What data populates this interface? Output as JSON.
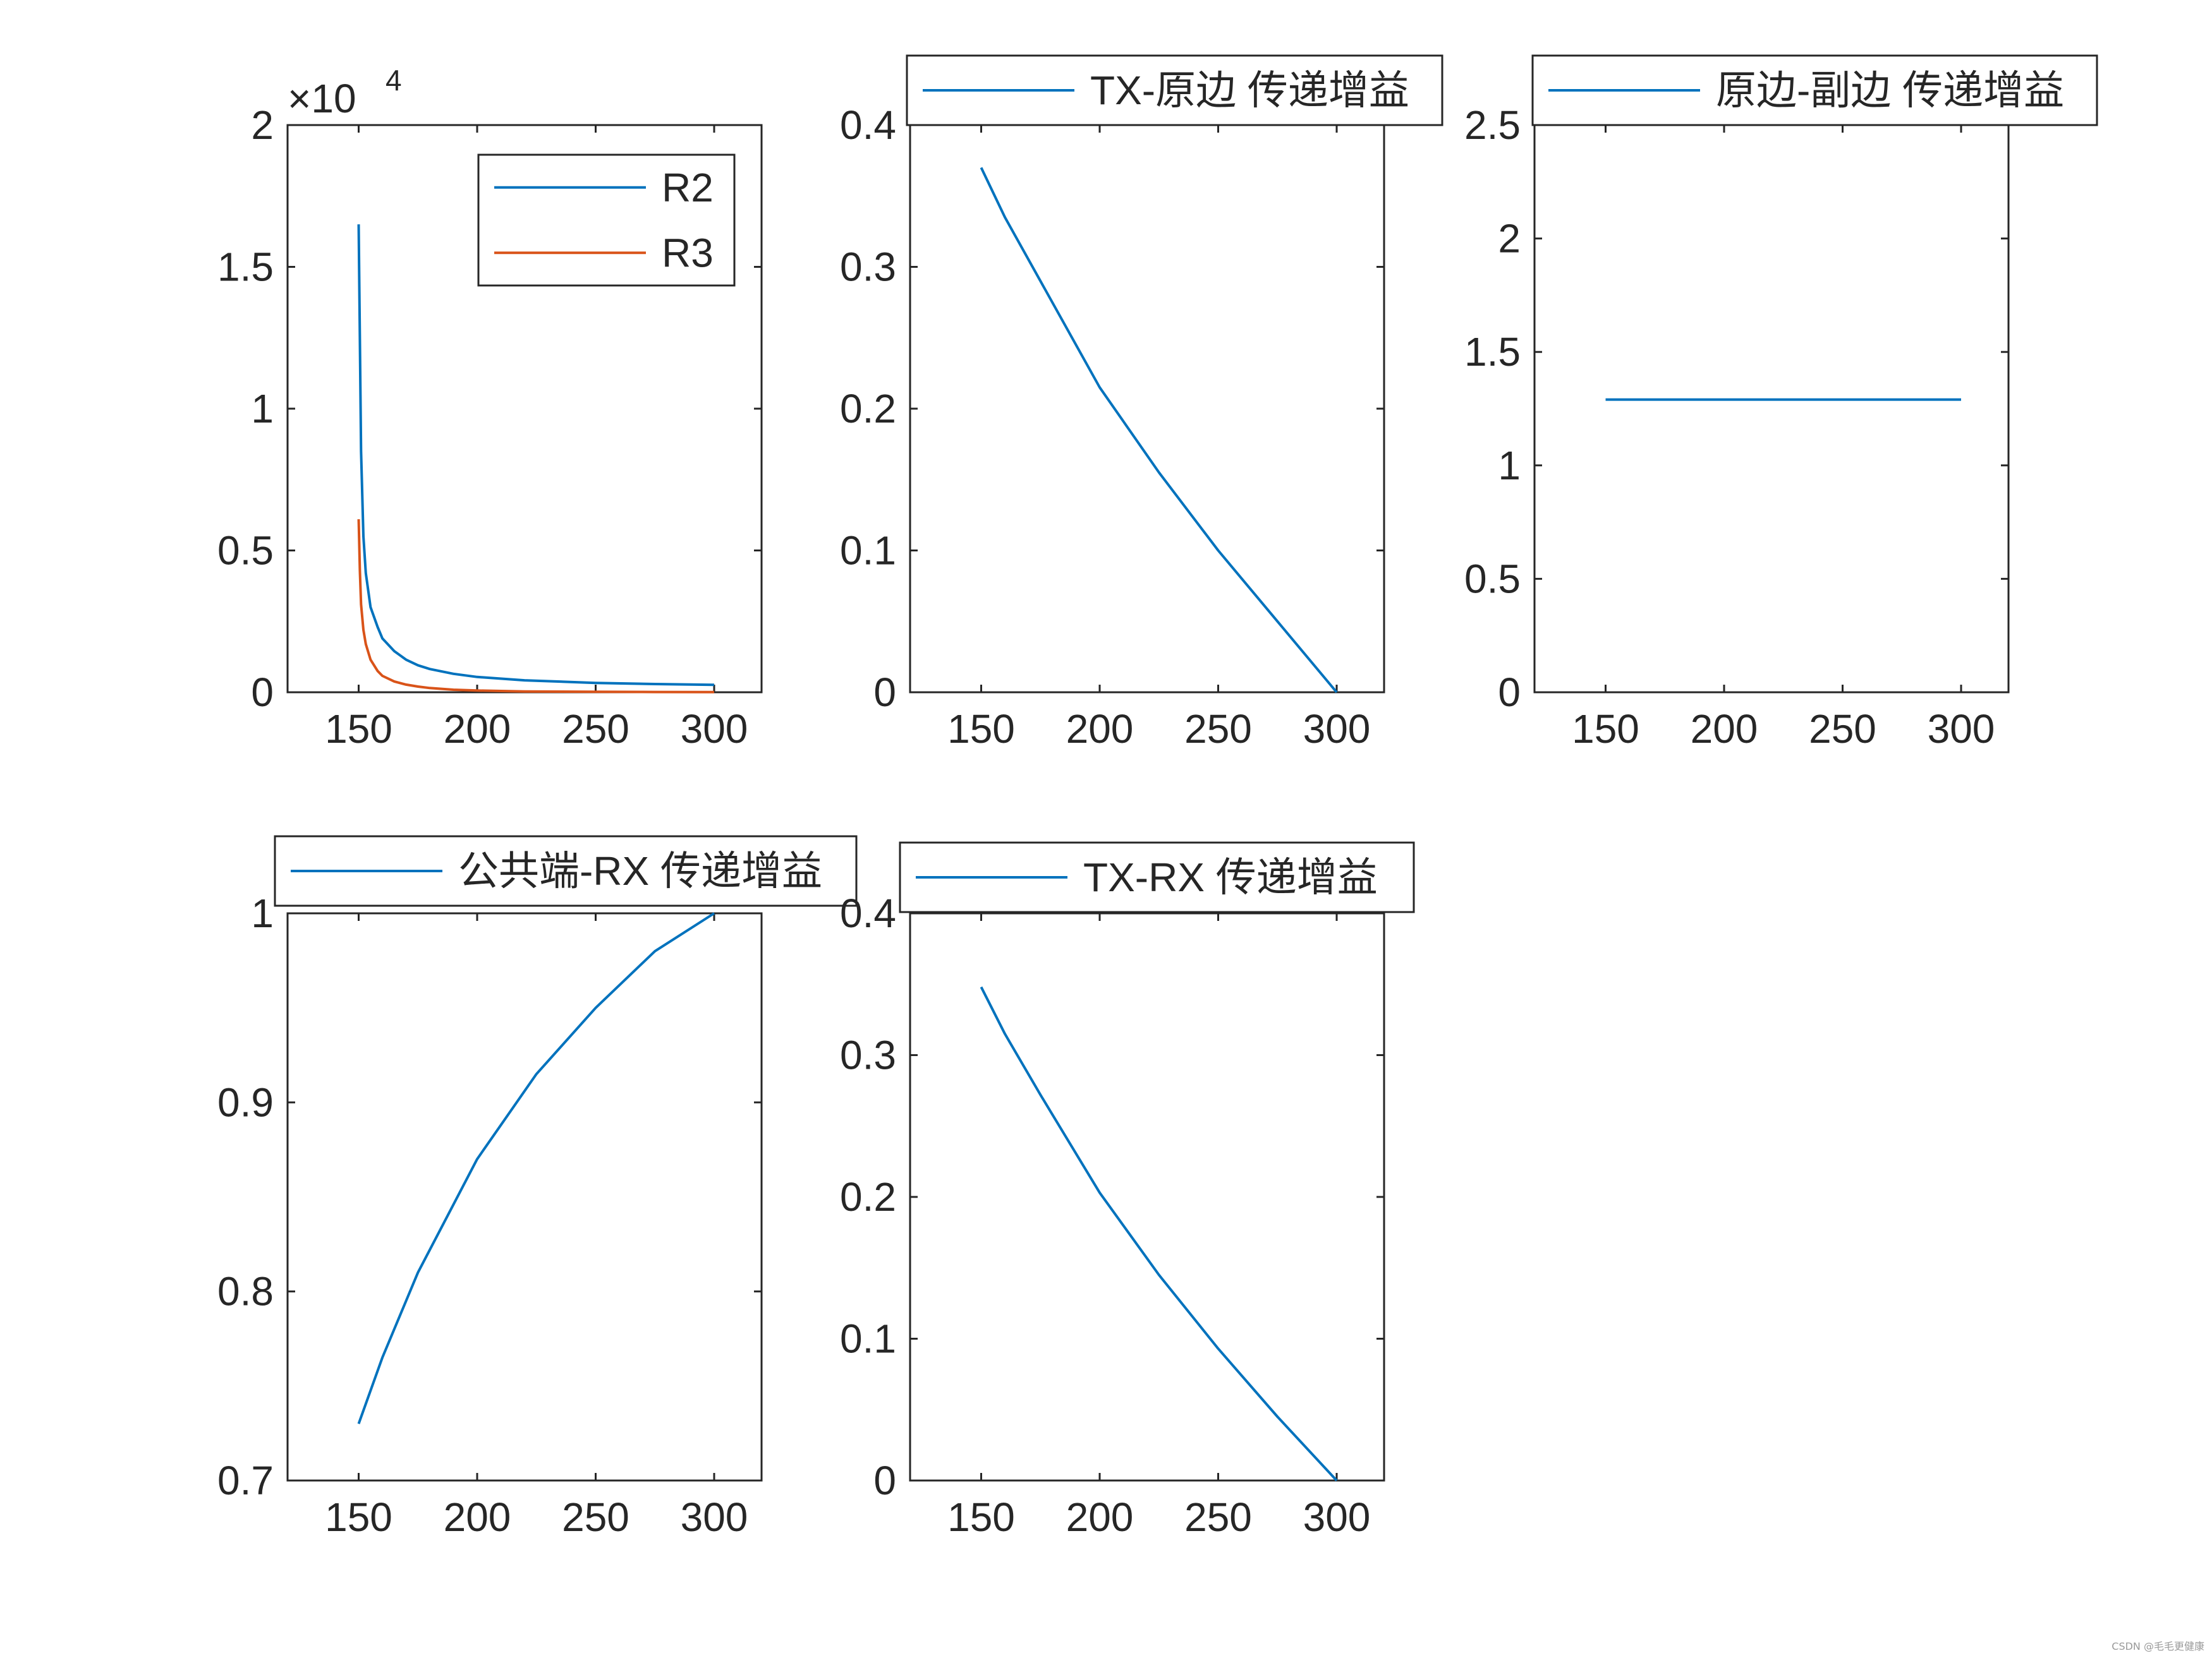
{
  "watermark": "CSDN @毛毛更健康",
  "colors": {
    "blue": "#0072BD",
    "orange": "#D95319",
    "axis": "#262626",
    "background": "#ffffff"
  },
  "chart_data": [
    {
      "type": "line",
      "exponent_label": "×10",
      "exponent_power": "4",
      "xlim": [
        120,
        320
      ],
      "ylim": [
        0,
        20000
      ],
      "xticks": [
        150,
        200,
        250,
        300
      ],
      "xtick_labels": [
        "150",
        "200",
        "250",
        "300"
      ],
      "yticks": [
        0,
        5000,
        10000,
        15000,
        20000
      ],
      "ytick_labels": [
        "0",
        "0.5",
        "1",
        "1.5",
        "2"
      ],
      "legend_position": "top-right",
      "series": [
        {
          "name": "R2",
          "color": "#0072BD",
          "x": [
            150,
            150.5,
            151,
            152,
            153,
            155,
            158,
            160,
            165,
            170,
            175,
            180,
            190,
            200,
            220,
            250,
            275,
            300
          ],
          "y": [
            16500,
            12500,
            8500,
            5500,
            4200,
            3000,
            2300,
            1900,
            1450,
            1150,
            950,
            820,
            650,
            540,
            420,
            330,
            290,
            260
          ]
        },
        {
          "name": "R3",
          "color": "#D95319",
          "x": [
            150,
            150.5,
            151,
            152,
            153,
            155,
            158,
            160,
            165,
            170,
            175,
            180,
            190,
            200,
            220,
            250,
            275,
            300
          ],
          "y": [
            6100,
            4300,
            3100,
            2200,
            1700,
            1150,
            750,
            580,
            380,
            270,
            200,
            150,
            90,
            60,
            30,
            15,
            8,
            5
          ]
        }
      ]
    },
    {
      "type": "line",
      "xlim": [
        120,
        320
      ],
      "ylim": [
        0,
        0.4
      ],
      "xticks": [
        150,
        200,
        250,
        300
      ],
      "xtick_labels": [
        "150",
        "200",
        "250",
        "300"
      ],
      "yticks": [
        0,
        0.1,
        0.2,
        0.3,
        0.4
      ],
      "ytick_labels": [
        "0",
        "0.1",
        "0.2",
        "0.3",
        "0.4"
      ],
      "legend_position": "above",
      "series": [
        {
          "name": "TX-原边 传递增益",
          "color": "#0072BD",
          "x": [
            150,
            160,
            175,
            200,
            225,
            250,
            275,
            300
          ],
          "y": [
            0.37,
            0.335,
            0.29,
            0.215,
            0.155,
            0.1,
            0.05,
            0.0
          ]
        }
      ]
    },
    {
      "type": "line",
      "xlim": [
        120,
        320
      ],
      "ylim": [
        0,
        2.5
      ],
      "xticks": [
        150,
        200,
        250,
        300
      ],
      "xtick_labels": [
        "150",
        "200",
        "250",
        "300"
      ],
      "yticks": [
        0,
        0.5,
        1,
        1.5,
        2,
        2.5
      ],
      "ytick_labels": [
        "0",
        "0.5",
        "1",
        "1.5",
        "2",
        "2.5"
      ],
      "legend_position": "above",
      "series": [
        {
          "name": "原边-副边 传递增益",
          "color": "#0072BD",
          "x": [
            150,
            300
          ],
          "y": [
            1.29,
            1.29
          ]
        }
      ]
    },
    {
      "type": "line",
      "xlim": [
        120,
        320
      ],
      "ylim": [
        0.7,
        1
      ],
      "xticks": [
        150,
        200,
        250,
        300
      ],
      "xtick_labels": [
        "150",
        "200",
        "250",
        "300"
      ],
      "yticks": [
        0.7,
        0.8,
        0.9,
        1
      ],
      "ytick_labels": [
        "0.7",
        "0.8",
        "0.9",
        "1"
      ],
      "legend_position": "above",
      "series": [
        {
          "name": "公共端-RX 传递增益",
          "color": "#0072BD",
          "x": [
            150,
            160,
            175,
            200,
            225,
            250,
            275,
            300
          ],
          "y": [
            0.73,
            0.765,
            0.81,
            0.87,
            0.915,
            0.95,
            0.98,
            1.0
          ]
        }
      ]
    },
    {
      "type": "line",
      "xlim": [
        120,
        320
      ],
      "ylim": [
        0,
        0.4
      ],
      "xticks": [
        150,
        200,
        250,
        300
      ],
      "xtick_labels": [
        "150",
        "200",
        "250",
        "300"
      ],
      "yticks": [
        0,
        0.1,
        0.2,
        0.3,
        0.4
      ],
      "ytick_labels": [
        "0",
        "0.1",
        "0.2",
        "0.3",
        "0.4"
      ],
      "legend_position": "above",
      "series": [
        {
          "name": "TX-RX 传递增益",
          "color": "#0072BD",
          "x": [
            150,
            160,
            175,
            200,
            225,
            250,
            275,
            300
          ],
          "y": [
            0.348,
            0.315,
            0.272,
            0.203,
            0.145,
            0.093,
            0.045,
            0.0
          ]
        }
      ]
    }
  ]
}
